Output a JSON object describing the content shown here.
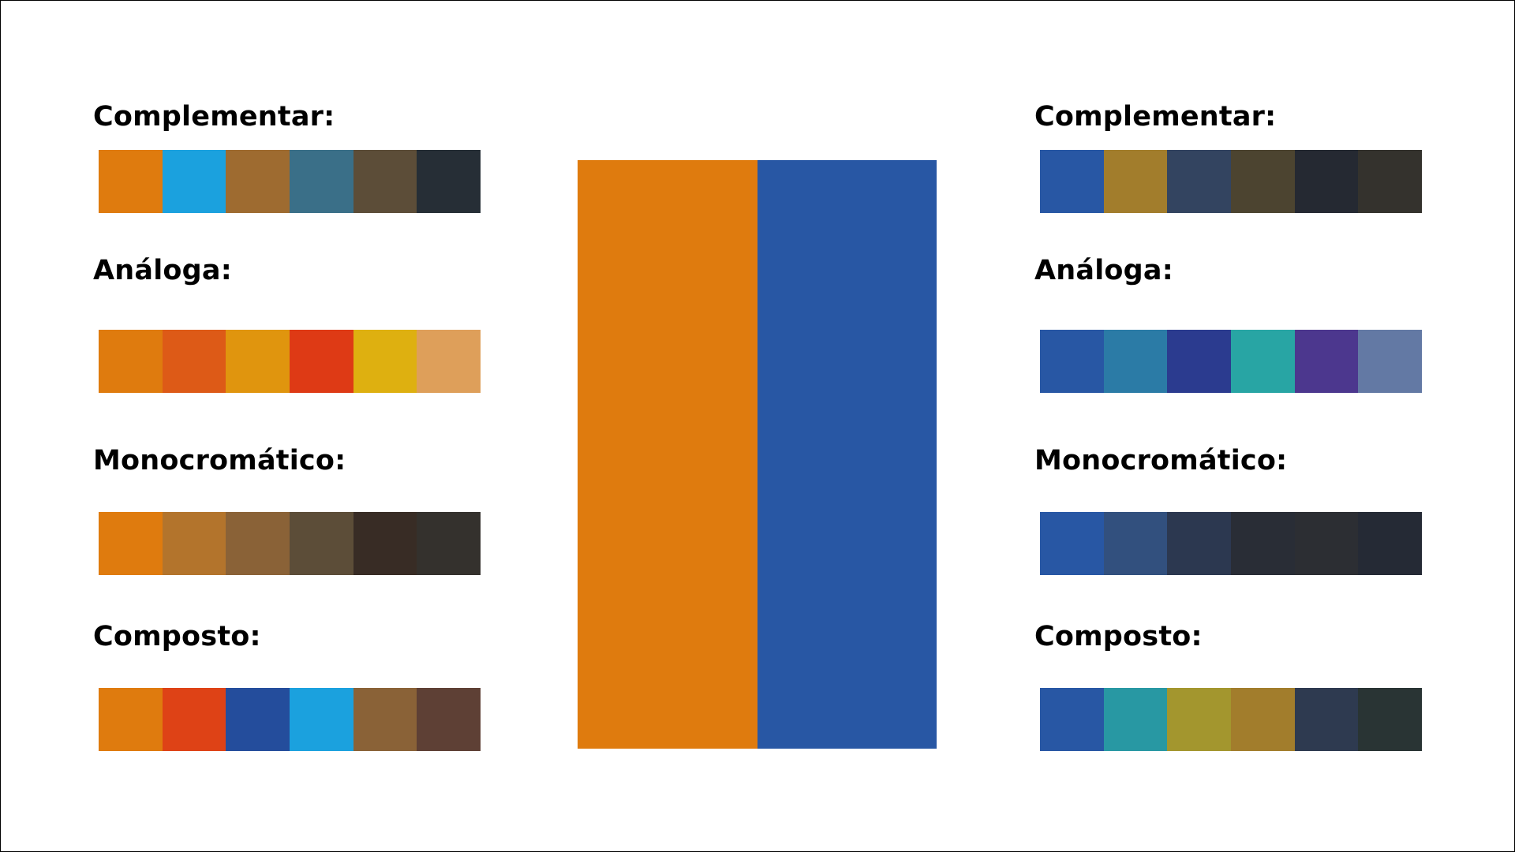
{
  "base_colors": [
    "#DF7B0E",
    "#2857A4"
  ],
  "left": {
    "sections": [
      {
        "label": "Complementar:",
        "colors": [
          "#DF7B0E",
          "#1BA1DE",
          "#9E6B30",
          "#3A6F88",
          "#5C4D38",
          "#262E36"
        ]
      },
      {
        "label": "Análoga:",
        "colors": [
          "#DF7B0E",
          "#DD5A17",
          "#E0950E",
          "#DE3A15",
          "#DEB010",
          "#DE9F5A"
        ]
      },
      {
        "label": "Monocromático:",
        "colors": [
          "#DF7B0E",
          "#B3742C",
          "#8A6237",
          "#5C4D38",
          "#382C25",
          "#34312D"
        ]
      },
      {
        "label": "Composto:",
        "colors": [
          "#DF7B0E",
          "#DE4216",
          "#244D9C",
          "#1BA1DE",
          "#8A6237",
          "#5E4035"
        ]
      }
    ]
  },
  "right": {
    "sections": [
      {
        "label": "Complementar:",
        "colors": [
          "#2857A4",
          "#A27D2C",
          "#334460",
          "#4C4430",
          "#252932",
          "#34322D"
        ]
      },
      {
        "label": "Análoga:",
        "colors": [
          "#2857A4",
          "#2B7BA6",
          "#2B3B8F",
          "#28A5A4",
          "#4C378E",
          "#6379A4"
        ]
      },
      {
        "label": "Monocromático:",
        "colors": [
          "#2857A4",
          "#32507E",
          "#2C3850",
          "#292D36",
          "#2C2E33",
          "#252A35"
        ]
      },
      {
        "label": "Composto:",
        "colors": [
          "#2857A4",
          "#2898A3",
          "#A3962E",
          "#A27D2C",
          "#2E3A50",
          "#293434"
        ]
      }
    ]
  }
}
